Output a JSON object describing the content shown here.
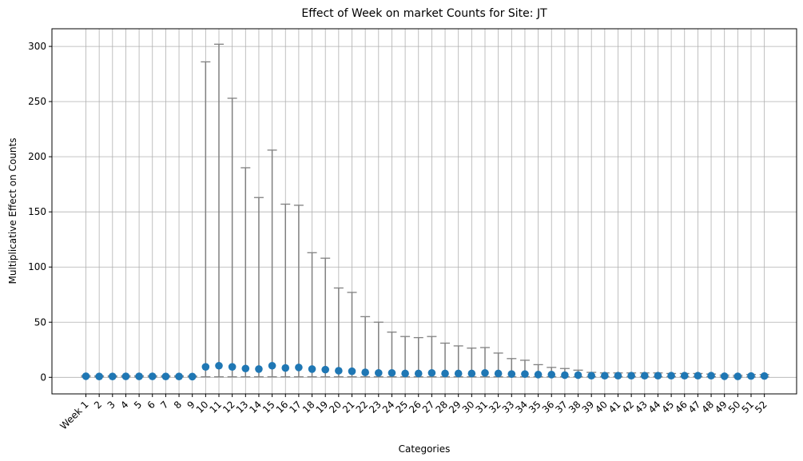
{
  "chart_data": {
    "type": "scatter",
    "title": "Effect of Week on market Counts for Site: JT",
    "xlabel": "Categories",
    "ylabel": "Multiplicative Effect on Counts",
    "ylim": [
      -15,
      316
    ],
    "yticks": [
      0,
      50,
      100,
      150,
      200,
      250,
      300
    ],
    "grid": true,
    "categories": [
      "Week 1",
      "2",
      "3",
      "4",
      "5",
      "6",
      "7",
      "8",
      "9",
      "10",
      "11",
      "12",
      "13",
      "14",
      "15",
      "16",
      "17",
      "18",
      "19",
      "20",
      "21",
      "22",
      "23",
      "24",
      "25",
      "26",
      "27",
      "28",
      "29",
      "30",
      "31",
      "32",
      "33",
      "34",
      "35",
      "36",
      "37",
      "38",
      "39",
      "40",
      "41",
      "42",
      "43",
      "44",
      "45",
      "46",
      "47",
      "48",
      "49",
      "50",
      "51",
      "52"
    ],
    "values": [
      1,
      0.8,
      0.8,
      0.9,
      0.9,
      0.9,
      0.8,
      0.8,
      0.7,
      9.5,
      10.5,
      9.5,
      8,
      7.5,
      10.5,
      8.5,
      9,
      7.5,
      7,
      6,
      5.5,
      4.5,
      4,
      4,
      3.5,
      3.5,
      4,
      3.5,
      3.5,
      3.5,
      4,
      3.5,
      3,
      3,
      2.5,
      2.5,
      2,
      2,
      1.5,
      1.5,
      1.5,
      1.5,
      1.5,
      1.5,
      1.5,
      1.5,
      1.5,
      1.5,
      1,
      0.9,
      1.2,
      1.2
    ],
    "lower": [
      0.3,
      0.3,
      0.3,
      0.3,
      0.3,
      0.3,
      0.3,
      0.3,
      0.3,
      0.5,
      0.5,
      0.5,
      0.5,
      0.5,
      0.5,
      0.5,
      0.5,
      0.5,
      0.5,
      0.5,
      0.5,
      0.5,
      0.5,
      0.5,
      0.5,
      0.5,
      0.5,
      0.5,
      0.5,
      0.5,
      0.5,
      0.5,
      0.5,
      0.5,
      0.5,
      0.5,
      0.5,
      0.5,
      0.5,
      0.5,
      0.5,
      0.5,
      0.5,
      0.5,
      0.5,
      0.5,
      0.5,
      0.5,
      0.3,
      0.3,
      0.3,
      0.3
    ],
    "upper": [
      1.5,
      1.3,
      1.3,
      1.4,
      1.4,
      1.4,
      1.3,
      1.3,
      1.2,
      286,
      302,
      253,
      190,
      163,
      206,
      157,
      156,
      113,
      108,
      81,
      77,
      55,
      50,
      41,
      37,
      36,
      37,
      31,
      28.5,
      26.5,
      27,
      22,
      17,
      15.5,
      11.5,
      9,
      8,
      6.5,
      4.5,
      4,
      4,
      4,
      4,
      4,
      3.5,
      3.5,
      3.5,
      3,
      2,
      1.8,
      2.5,
      2.5
    ]
  }
}
